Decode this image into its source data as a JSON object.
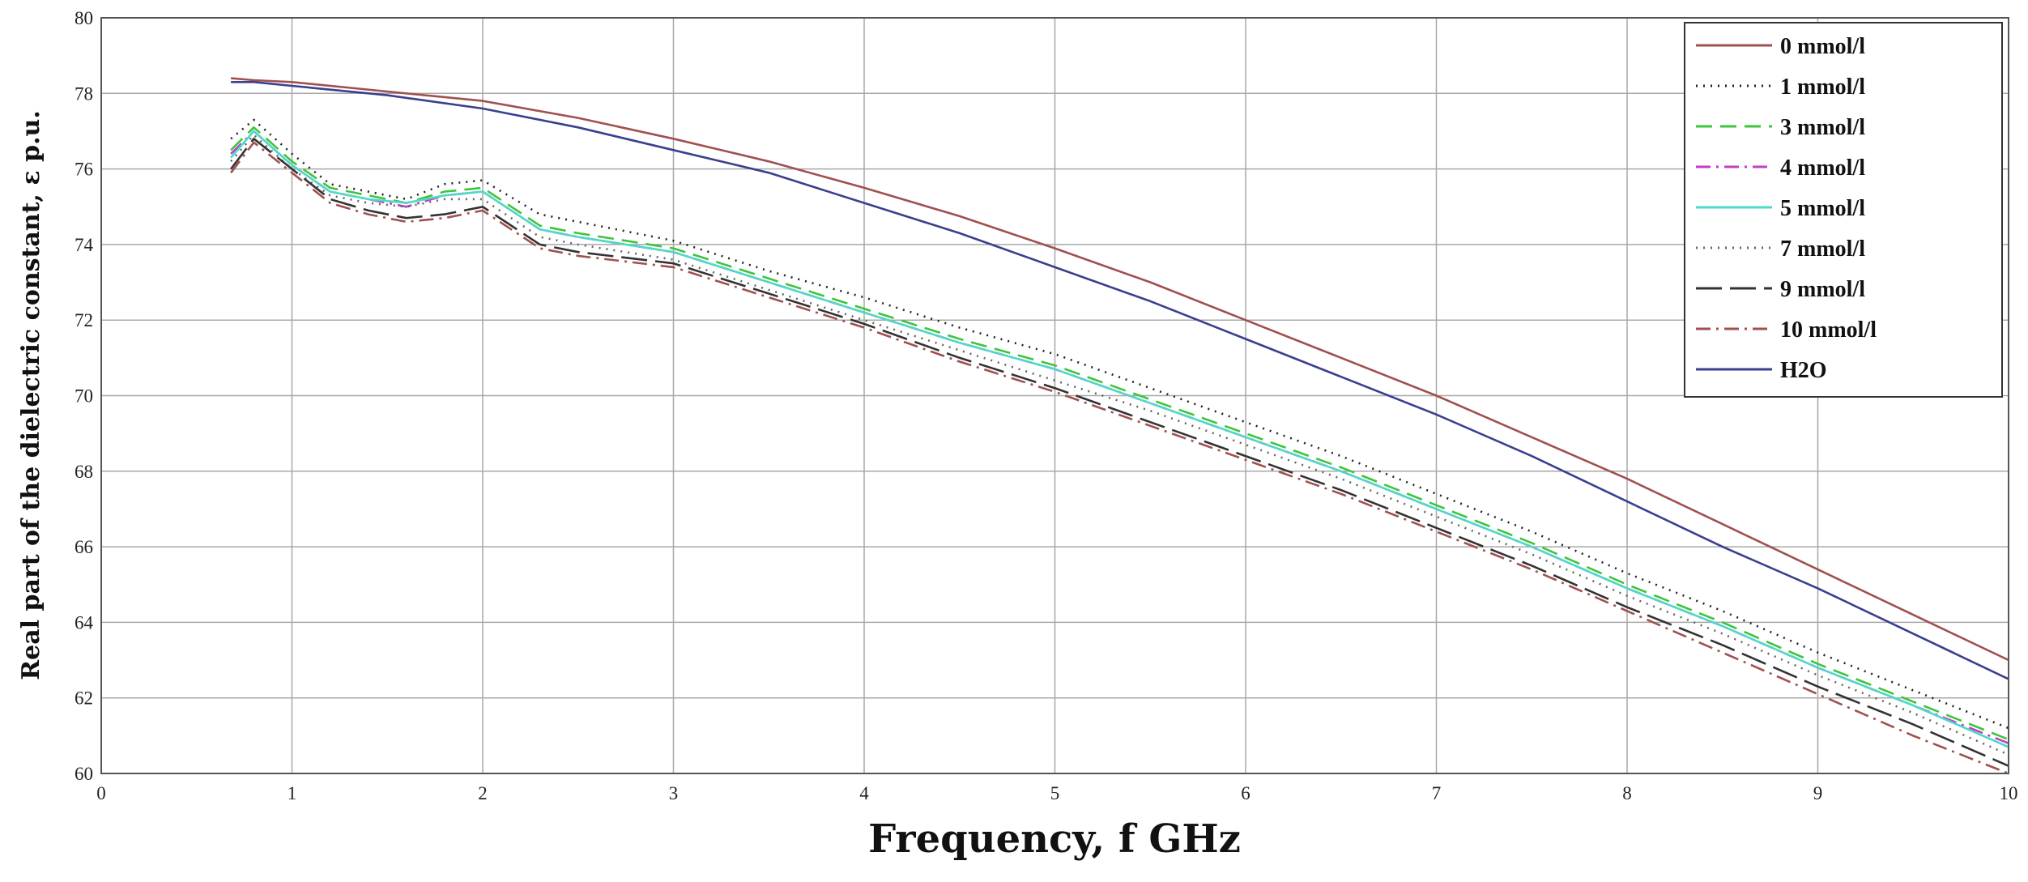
{
  "chart_data": {
    "type": "line",
    "title": "",
    "xlabel": "Frequency, f GHz",
    "ylabel": "Real part of the dielectric constant, ε p.u.",
    "xlim": [
      0,
      10
    ],
    "ylim": [
      60,
      80
    ],
    "x_ticks": [
      "0",
      "1",
      "2",
      "3",
      "4",
      "5",
      "6",
      "7",
      "8",
      "9",
      "10"
    ],
    "y_ticks": [
      "60",
      "62",
      "64",
      "66",
      "68",
      "70",
      "72",
      "74",
      "76",
      "78",
      "80"
    ],
    "grid": true,
    "legend_position": "top-right",
    "series": [
      {
        "name": "0 mmol/l",
        "color": "#a0504f",
        "dash": "solid",
        "x": [
          0.68,
          0.8,
          1.0,
          1.5,
          2.0,
          2.5,
          3.0,
          3.5,
          4.0,
          4.5,
          5.0,
          5.5,
          6.0,
          6.5,
          7.0,
          7.5,
          8.0,
          8.5,
          9.0,
          9.5,
          10.0
        ],
        "y": [
          78.4,
          78.35,
          78.3,
          78.05,
          77.8,
          77.35,
          76.8,
          76.2,
          75.5,
          74.75,
          73.9,
          73.0,
          72.0,
          71.0,
          70.0,
          68.9,
          67.8,
          66.6,
          65.4,
          64.2,
          63.0
        ]
      },
      {
        "name": "1 mmol/l",
        "color": "#222222",
        "dash": "dotted",
        "x": [
          0.68,
          0.8,
          1.0,
          1.2,
          1.4,
          1.6,
          1.8,
          2.0,
          2.3,
          2.5,
          3.0,
          3.5,
          4.0,
          4.5,
          5.0,
          5.5,
          6.0,
          6.5,
          7.0,
          7.5,
          8.0,
          8.5,
          9.0,
          9.5,
          10.0
        ],
        "y": [
          76.8,
          77.3,
          76.4,
          75.6,
          75.4,
          75.2,
          75.6,
          75.7,
          74.8,
          74.6,
          74.1,
          73.3,
          72.6,
          71.8,
          71.1,
          70.2,
          69.3,
          68.4,
          67.4,
          66.4,
          65.3,
          64.3,
          63.2,
          62.2,
          61.2
        ]
      },
      {
        "name": "3 mmol/l",
        "color": "#3ec43e",
        "dash": "dashed",
        "x": [
          0.68,
          0.8,
          1.0,
          1.2,
          1.4,
          1.6,
          1.8,
          2.0,
          2.3,
          2.5,
          3.0,
          3.5,
          4.0,
          4.5,
          5.0,
          5.5,
          6.0,
          6.5,
          7.0,
          7.5,
          8.0,
          8.5,
          9.0,
          9.5,
          10.0
        ],
        "y": [
          76.5,
          77.1,
          76.2,
          75.5,
          75.3,
          75.1,
          75.4,
          75.5,
          74.5,
          74.3,
          73.9,
          73.1,
          72.3,
          71.5,
          70.8,
          69.9,
          69.0,
          68.1,
          67.1,
          66.1,
          65.0,
          64.0,
          62.9,
          61.9,
          60.9
        ]
      },
      {
        "name": "4 mmol/l",
        "color": "#c43ec4",
        "dash": "dashdot",
        "x": [
          0.68,
          0.8,
          1.0,
          1.2,
          1.4,
          1.6,
          1.8,
          2.0,
          2.3,
          2.5,
          3.0,
          3.5,
          4.0,
          4.5,
          5.0,
          5.5,
          6.0,
          6.5,
          7.0,
          7.5,
          8.0,
          8.5,
          9.0,
          9.5,
          10.0
        ],
        "y": [
          76.4,
          77.0,
          76.1,
          75.4,
          75.2,
          75.0,
          75.3,
          75.4,
          74.4,
          74.2,
          73.8,
          73.0,
          72.2,
          71.4,
          70.7,
          69.8,
          68.9,
          68.0,
          67.0,
          66.0,
          64.9,
          63.9,
          62.8,
          61.8,
          60.8
        ]
      },
      {
        "name": "5 mmol/l",
        "color": "#4fd8c8",
        "dash": "solid",
        "x": [
          0.68,
          0.8,
          1.0,
          1.2,
          1.4,
          1.6,
          1.8,
          2.0,
          2.3,
          2.5,
          3.0,
          3.5,
          4.0,
          4.5,
          5.0,
          5.5,
          6.0,
          6.5,
          7.0,
          7.5,
          8.0,
          8.5,
          9.0,
          9.5,
          10.0
        ],
        "y": [
          76.3,
          77.0,
          76.1,
          75.4,
          75.2,
          75.1,
          75.3,
          75.4,
          74.4,
          74.2,
          73.8,
          73.0,
          72.2,
          71.4,
          70.7,
          69.8,
          68.9,
          68.0,
          67.0,
          66.0,
          64.9,
          63.9,
          62.8,
          61.8,
          60.7
        ]
      },
      {
        "name": "7 mmol/l",
        "color": "#666666",
        "dash": "dotted",
        "x": [
          0.68,
          0.8,
          1.0,
          1.2,
          1.4,
          1.6,
          1.8,
          2.0,
          2.3,
          2.5,
          3.0,
          3.5,
          4.0,
          4.5,
          5.0,
          5.5,
          6.0,
          6.5,
          7.0,
          7.5,
          8.0,
          8.5,
          9.0,
          9.5,
          10.0
        ],
        "y": [
          76.2,
          76.9,
          76.0,
          75.3,
          75.1,
          75.0,
          75.2,
          75.2,
          74.2,
          74.0,
          73.6,
          72.8,
          72.0,
          71.2,
          70.4,
          69.6,
          68.7,
          67.8,
          66.8,
          65.8,
          64.7,
          63.7,
          62.6,
          61.6,
          60.5
        ]
      },
      {
        "name": "9 mmol/l",
        "color": "#333333",
        "dash": "longdash",
        "x": [
          0.68,
          0.8,
          1.0,
          1.2,
          1.4,
          1.6,
          1.8,
          2.0,
          2.3,
          2.5,
          3.0,
          3.5,
          4.0,
          4.5,
          5.0,
          5.5,
          6.0,
          6.5,
          7.0,
          7.5,
          8.0,
          8.5,
          9.0,
          9.5,
          10.0
        ],
        "y": [
          76.0,
          76.8,
          76.0,
          75.2,
          74.9,
          74.7,
          74.8,
          75.0,
          74.0,
          73.8,
          73.5,
          72.7,
          71.9,
          71.0,
          70.2,
          69.3,
          68.4,
          67.5,
          66.5,
          65.5,
          64.4,
          63.4,
          62.3,
          61.3,
          60.2
        ]
      },
      {
        "name": "10 mmol/l",
        "color": "#a0504f",
        "dash": "dashdot",
        "x": [
          0.68,
          0.8,
          1.0,
          1.2,
          1.4,
          1.6,
          1.8,
          2.0,
          2.3,
          2.5,
          3.0,
          3.5,
          4.0,
          4.5,
          5.0,
          5.5,
          6.0,
          6.5,
          7.0,
          7.5,
          8.0,
          8.5,
          9.0,
          9.5,
          10.0
        ],
        "y": [
          75.9,
          76.7,
          75.9,
          75.1,
          74.8,
          74.6,
          74.7,
          74.9,
          73.9,
          73.7,
          73.4,
          72.6,
          71.8,
          70.9,
          70.1,
          69.2,
          68.3,
          67.4,
          66.4,
          65.4,
          64.3,
          63.2,
          62.1,
          61.0,
          60.0
        ]
      },
      {
        "name": "H2O",
        "color": "#3a3f8f",
        "dash": "solid",
        "x": [
          0.68,
          0.8,
          1.0,
          1.5,
          2.0,
          2.5,
          3.0,
          3.5,
          4.0,
          4.5,
          5.0,
          5.5,
          6.0,
          6.5,
          7.0,
          7.5,
          8.0,
          8.5,
          9.0,
          9.5,
          10.0
        ],
        "y": [
          78.3,
          78.3,
          78.2,
          77.95,
          77.6,
          77.1,
          76.5,
          75.9,
          75.1,
          74.3,
          73.4,
          72.5,
          71.5,
          70.5,
          69.5,
          68.4,
          67.2,
          66.0,
          64.9,
          63.7,
          62.5
        ]
      }
    ]
  }
}
